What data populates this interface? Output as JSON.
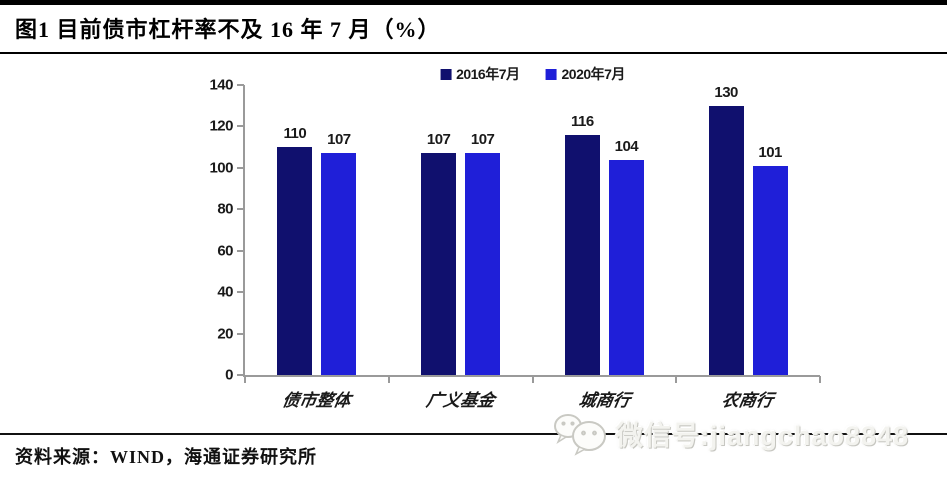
{
  "header": {
    "title": "图1  目前债市杠杆率不及 16 年 7 月（%）"
  },
  "chart_data": {
    "type": "bar",
    "title": "目前债市杠杆率不及16年7月（%）",
    "categories": [
      "债市整体",
      "广义基金",
      "城商行",
      "农商行"
    ],
    "series": [
      {
        "name": "2016年7月",
        "color": "#10106e",
        "values": [
          110,
          107,
          116,
          130
        ]
      },
      {
        "name": "2020年7月",
        "color": "#1f1fd8",
        "values": [
          107,
          107,
          104,
          101
        ]
      }
    ],
    "ylim": [
      0,
      140
    ],
    "yticks": [
      0,
      20,
      40,
      60,
      80,
      100,
      120,
      140
    ],
    "xlabel": "",
    "ylabel": "",
    "grid": false,
    "data_labels": true,
    "legend_position": "top-center",
    "axis_color": "#9a9a9a",
    "text_color": "#1a1a1a"
  },
  "footer": {
    "source": "资料来源：WIND，海通证券研究所",
    "watermark": {
      "icon": "wechat-icon",
      "text": "微信号:jiangchao8848"
    }
  }
}
